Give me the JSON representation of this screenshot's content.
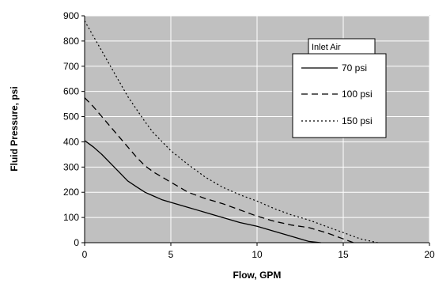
{
  "chart_data": {
    "type": "line",
    "title": "",
    "xlabel": "Flow, GPM",
    "ylabel": "Fluid Pressure, psi",
    "xlim": [
      0,
      20
    ],
    "ylim": [
      0,
      900
    ],
    "xticks": [
      0,
      5,
      10,
      15,
      20
    ],
    "yticks": [
      0,
      100,
      200,
      300,
      400,
      500,
      600,
      700,
      800,
      900
    ],
    "grid": true,
    "legend_title": "Inlet Air",
    "legend_position": "top-right",
    "series": [
      {
        "name": "70 psi",
        "style": "solid",
        "x": [
          0,
          0.5,
          1,
          1.5,
          2,
          2.5,
          3,
          3.5,
          4,
          4.5,
          5,
          6,
          7,
          8,
          9,
          10,
          11,
          12,
          13,
          13.7
        ],
        "y": [
          405,
          380,
          350,
          315,
          280,
          245,
          222,
          200,
          185,
          170,
          160,
          140,
          120,
          100,
          80,
          65,
          45,
          25,
          5,
          0
        ]
      },
      {
        "name": "100 psi",
        "style": "dashed",
        "x": [
          0,
          0.5,
          1,
          1.5,
          2,
          2.5,
          3,
          3.5,
          4,
          5,
          6,
          7,
          8,
          9,
          10,
          11,
          12,
          13,
          14,
          15,
          15.6
        ],
        "y": [
          575,
          540,
          500,
          460,
          420,
          380,
          340,
          305,
          280,
          240,
          200,
          175,
          155,
          130,
          105,
          85,
          70,
          60,
          40,
          15,
          0
        ]
      },
      {
        "name": "150 psi",
        "style": "dotted",
        "x": [
          0,
          0.5,
          1,
          1.5,
          2,
          2.5,
          3,
          3.5,
          4,
          4.5,
          5,
          6,
          7,
          8,
          9,
          10,
          11,
          12,
          13,
          14,
          15,
          16,
          17
        ],
        "y": [
          880,
          820,
          760,
          700,
          640,
          580,
          530,
          480,
          435,
          400,
          365,
          310,
          260,
          220,
          190,
          165,
          135,
          110,
          90,
          65,
          40,
          15,
          0
        ]
      }
    ]
  }
}
